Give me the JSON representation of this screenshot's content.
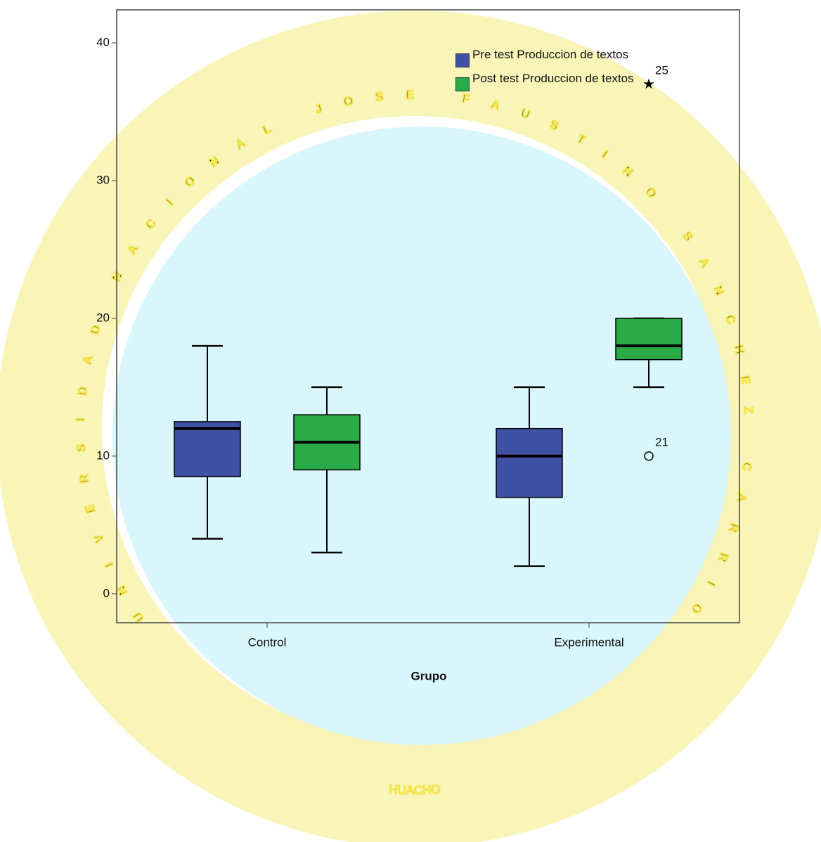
{
  "watermark": {
    "top": "UNIVERSIDAD NACIONAL JOSE FAUSTINO SANCHEZ CARRION",
    "bottom": "HUACHO"
  },
  "chart_data": {
    "type": "boxplot",
    "x_label": "Grupo",
    "categories": [
      "Control",
      "Experimental"
    ],
    "ylim": [
      -2.1,
      42.4
    ],
    "yticks": [
      0,
      10,
      20,
      30,
      40
    ],
    "series": [
      {
        "name": "Pre test Produccion de textos",
        "color": "#3f51a4",
        "boxes": [
          {
            "whislo": 4,
            "q1": 8.5,
            "med": 12,
            "q3": 12.5,
            "whishi": 18
          },
          {
            "whislo": 2,
            "q1": 7,
            "med": 10,
            "q3": 12,
            "whishi": 15
          }
        ],
        "outliers": [
          [],
          []
        ]
      },
      {
        "name": "Post test Produccion de textos",
        "color": "#2aab48",
        "boxes": [
          {
            "whislo": 3,
            "q1": 9,
            "med": 11,
            "q3": 13,
            "whishi": 15
          },
          {
            "whislo": 15,
            "q1": 17,
            "med": 18,
            "q3": 20,
            "whishi": 20
          }
        ],
        "outliers": [
          [],
          [
            {
              "value": 10,
              "label": "21",
              "marker": "circle"
            },
            {
              "value": 37,
              "label": "25",
              "marker": "star"
            }
          ]
        ]
      }
    ]
  }
}
